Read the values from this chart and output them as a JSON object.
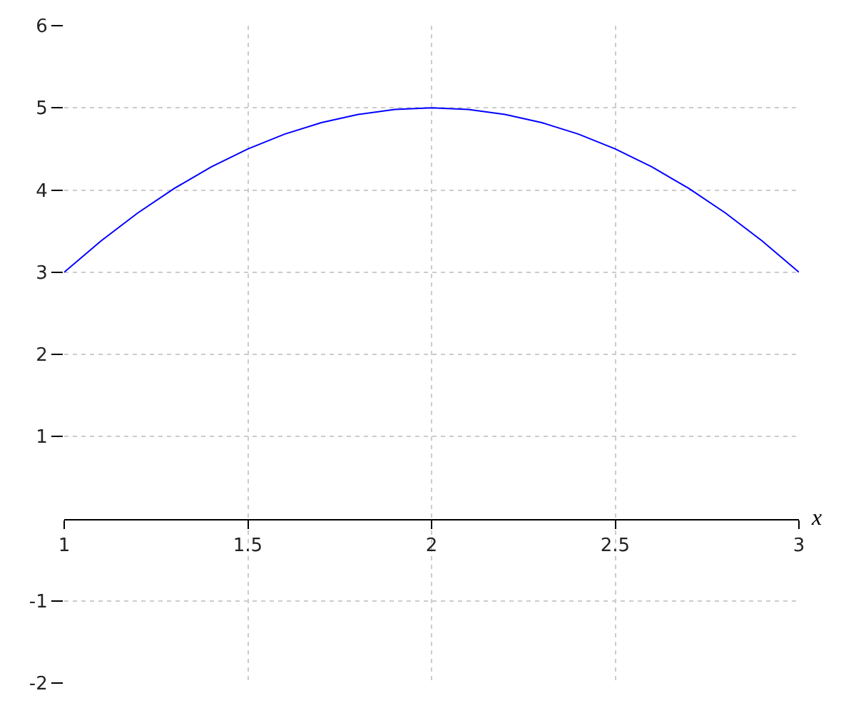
{
  "chart_data": {
    "type": "line",
    "xlabel": "x",
    "x": [
      1,
      1.1,
      1.2,
      1.3,
      1.4,
      1.5,
      1.6,
      1.7,
      1.8,
      1.9,
      2,
      2.1,
      2.2,
      2.3,
      2.4,
      2.5,
      2.6,
      2.7,
      2.8,
      2.9,
      3
    ],
    "series": [
      {
        "color": "#0000ff",
        "values": [
          3,
          3.38,
          3.72,
          4.02,
          4.28,
          4.5,
          4.68,
          4.82,
          4.92,
          4.98,
          5,
          4.98,
          4.92,
          4.82,
          4.68,
          4.5,
          4.28,
          4.02,
          3.72,
          3.38,
          3
        ]
      }
    ],
    "xlim": [
      1,
      3
    ],
    "xticks": [
      1,
      1.5,
      2,
      2.5,
      3
    ],
    "ylim": [
      -2,
      6
    ],
    "yticks": [
      -2,
      -1,
      1,
      2,
      3,
      4,
      5,
      6
    ],
    "grid": true,
    "marker": "none",
    "line_style": "solid"
  }
}
